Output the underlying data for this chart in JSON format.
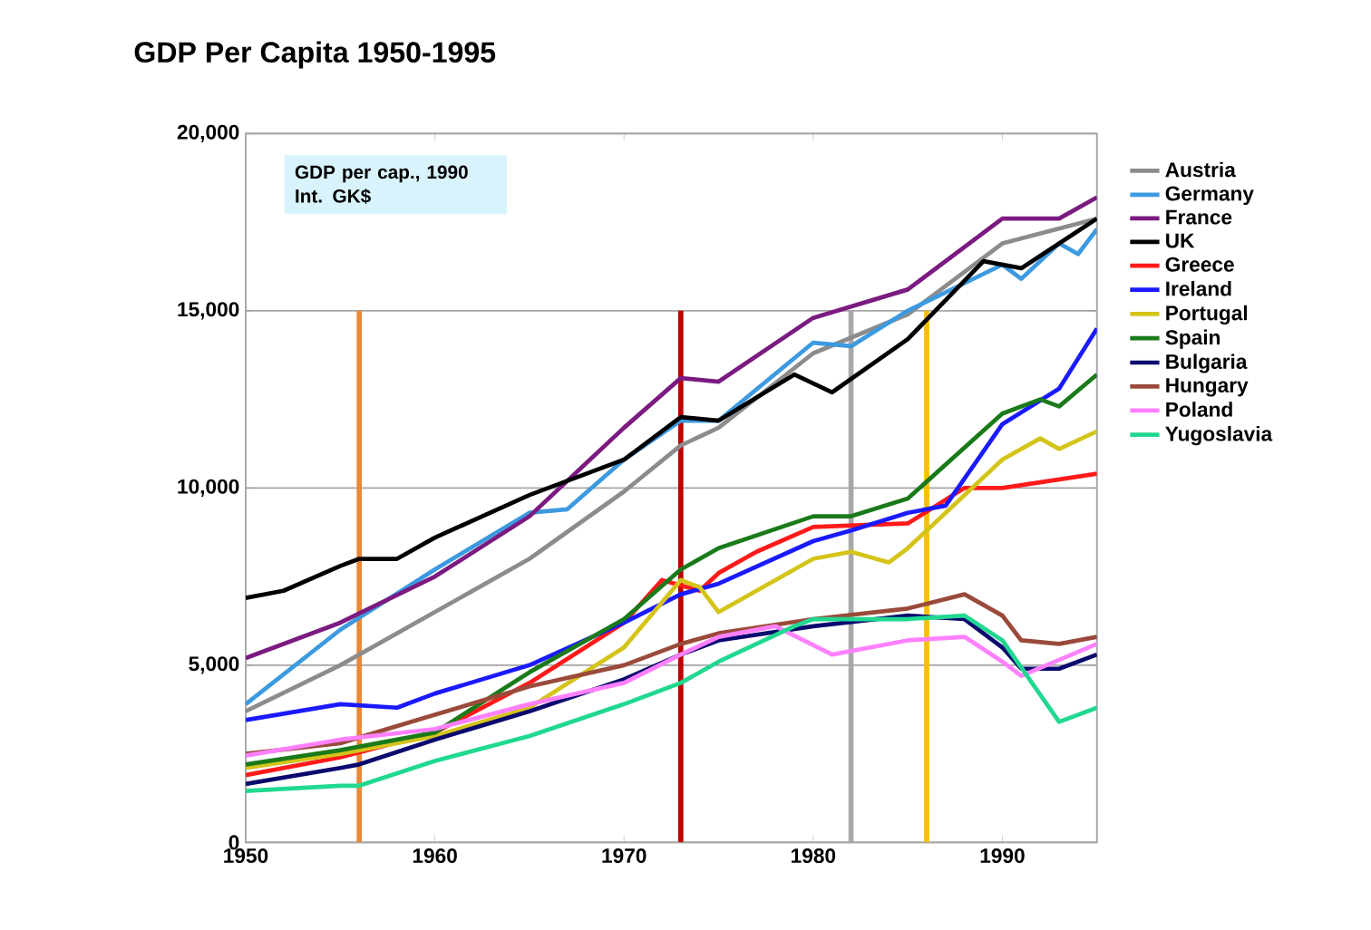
{
  "chart_data": {
    "type": "line",
    "title": "GDP Per Capita 1950-1995",
    "annotations": [
      "GDP per cap., 1990 Int. GK$"
    ],
    "xlim": [
      1950,
      1995
    ],
    "xticks": [
      1950,
      1960,
      1970,
      1980,
      1990
    ],
    "ylim": [
      0,
      20000
    ],
    "yticks": [
      {
        "value": 0,
        "label": "0"
      },
      {
        "value": 5000,
        "label": "5,000"
      },
      {
        "value": 10000,
        "label": "10,000"
      },
      {
        "value": 15000,
        "label": "15,000"
      },
      {
        "value": 20000,
        "label": "20,000"
      }
    ],
    "grid": "y",
    "legend": "right",
    "marker": "none",
    "line_style": "solid",
    "ref_lines": [
      {
        "axis": "x",
        "value": 1956,
        "color": "#e8893a"
      },
      {
        "axis": "x",
        "value": 1973,
        "color": "#c00000"
      },
      {
        "axis": "x",
        "value": 1982,
        "color": "#a8a8a8"
      },
      {
        "axis": "x",
        "value": 1986,
        "color": "#f5c000"
      }
    ],
    "series": [
      {
        "name": "Austria",
        "color": "#8c8c8c",
        "x": [
          1950,
          1955,
          1960,
          1965,
          1970,
          1973,
          1975,
          1980,
          1985,
          1990,
          1995
        ],
        "values": [
          3700,
          5000,
          6500,
          8000,
          9900,
          11200,
          11700,
          13800,
          14900,
          16900,
          17600
        ]
      },
      {
        "name": "Germany",
        "color": "#3c9ae0",
        "x": [
          1950,
          1955,
          1960,
          1965,
          1967,
          1970,
          1973,
          1975,
          1980,
          1982,
          1985,
          1990,
          1991,
          1993,
          1994,
          1995
        ],
        "values": [
          3900,
          6000,
          7700,
          9300,
          9400,
          10800,
          11900,
          11900,
          14100,
          14000,
          15000,
          16300,
          15900,
          16900,
          16600,
          17300
        ]
      },
      {
        "name": "France",
        "color": "#7b1a80",
        "x": [
          1950,
          1955,
          1960,
          1965,
          1970,
          1973,
          1975,
          1980,
          1985,
          1990,
          1993,
          1995
        ],
        "values": [
          5200,
          6200,
          7500,
          9200,
          11700,
          13100,
          13000,
          14800,
          15600,
          17600,
          17600,
          18200
        ]
      },
      {
        "name": "UK",
        "color": "#000000",
        "x": [
          1950,
          1952,
          1955,
          1956,
          1958,
          1960,
          1965,
          1970,
          1973,
          1975,
          1979,
          1981,
          1985,
          1989,
          1991,
          1995
        ],
        "values": [
          6900,
          7100,
          7800,
          8000,
          8000,
          8600,
          9800,
          10800,
          12000,
          11900,
          13200,
          12700,
          14200,
          16400,
          16200,
          17600
        ]
      },
      {
        "name": "Greece",
        "color": "#ff1a1a",
        "x": [
          1950,
          1955,
          1960,
          1965,
          1970,
          1972,
          1974,
          1975,
          1977,
          1980,
          1985,
          1988,
          1990,
          1995
        ],
        "values": [
          1900,
          2400,
          3100,
          4500,
          6200,
          7400,
          7100,
          7600,
          8200,
          8900,
          9000,
          10000,
          10000,
          10400
        ]
      },
      {
        "name": "Ireland",
        "color": "#1a1aff",
        "x": [
          1950,
          1955,
          1958,
          1960,
          1965,
          1970,
          1973,
          1975,
          1980,
          1982,
          1985,
          1987,
          1990,
          1993,
          1995
        ],
        "values": [
          3450,
          3900,
          3800,
          4200,
          5000,
          6200,
          7000,
          7300,
          8500,
          8800,
          9300,
          9500,
          11800,
          12800,
          14500
        ]
      },
      {
        "name": "Portugal",
        "color": "#d4c41a",
        "x": [
          1950,
          1955,
          1960,
          1965,
          1970,
          1973,
          1974,
          1975,
          1980,
          1982,
          1984,
          1985,
          1990,
          1992,
          1993,
          1995
        ],
        "values": [
          2100,
          2500,
          3000,
          3800,
          5500,
          7400,
          7200,
          6500,
          8000,
          8200,
          7900,
          8300,
          10800,
          11400,
          11100,
          11600
        ]
      },
      {
        "name": "Spain",
        "color": "#1a7a1a",
        "x": [
          1950,
          1955,
          1960,
          1965,
          1970,
          1973,
          1975,
          1980,
          1982,
          1985,
          1990,
          1992,
          1993,
          1995
        ],
        "values": [
          2200,
          2600,
          3100,
          4800,
          6300,
          7700,
          8300,
          9200,
          9200,
          9700,
          12100,
          12500,
          12300,
          13200
        ]
      },
      {
        "name": "Bulgaria",
        "color": "#0a0a6e",
        "x": [
          1950,
          1955,
          1956,
          1960,
          1965,
          1970,
          1973,
          1975,
          1980,
          1985,
          1988,
          1990,
          1991,
          1993,
          1995
        ],
        "values": [
          1650,
          2100,
          2200,
          2900,
          3700,
          4600,
          5300,
          5700,
          6100,
          6400,
          6300,
          5500,
          4900,
          4900,
          5300
        ]
      },
      {
        "name": "Hungary",
        "color": "#9a4a3a",
        "x": [
          1950,
          1955,
          1960,
          1965,
          1970,
          1973,
          1975,
          1980,
          1985,
          1988,
          1990,
          1991,
          1993,
          1995
        ],
        "values": [
          2500,
          2800,
          3600,
          4400,
          5000,
          5600,
          5900,
          6300,
          6600,
          7000,
          6400,
          5700,
          5600,
          5800
        ]
      },
      {
        "name": "Poland",
        "color": "#ff80ff",
        "x": [
          1950,
          1955,
          1960,
          1965,
          1970,
          1973,
          1975,
          1978,
          1981,
          1985,
          1988,
          1990,
          1991,
          1995
        ],
        "values": [
          2450,
          2900,
          3200,
          3900,
          4500,
          5300,
          5800,
          6100,
          5300,
          5700,
          5800,
          5100,
          4700,
          5600
        ]
      },
      {
        "name": "Yugoslavia",
        "color": "#20d890",
        "x": [
          1950,
          1955,
          1956,
          1960,
          1965,
          1970,
          1973,
          1975,
          1979,
          1980,
          1985,
          1988,
          1990,
          1993,
          1995
        ],
        "values": [
          1450,
          1600,
          1600,
          2300,
          3000,
          3900,
          4500,
          5100,
          6100,
          6300,
          6300,
          6400,
          5700,
          3400,
          3800
        ]
      }
    ]
  }
}
